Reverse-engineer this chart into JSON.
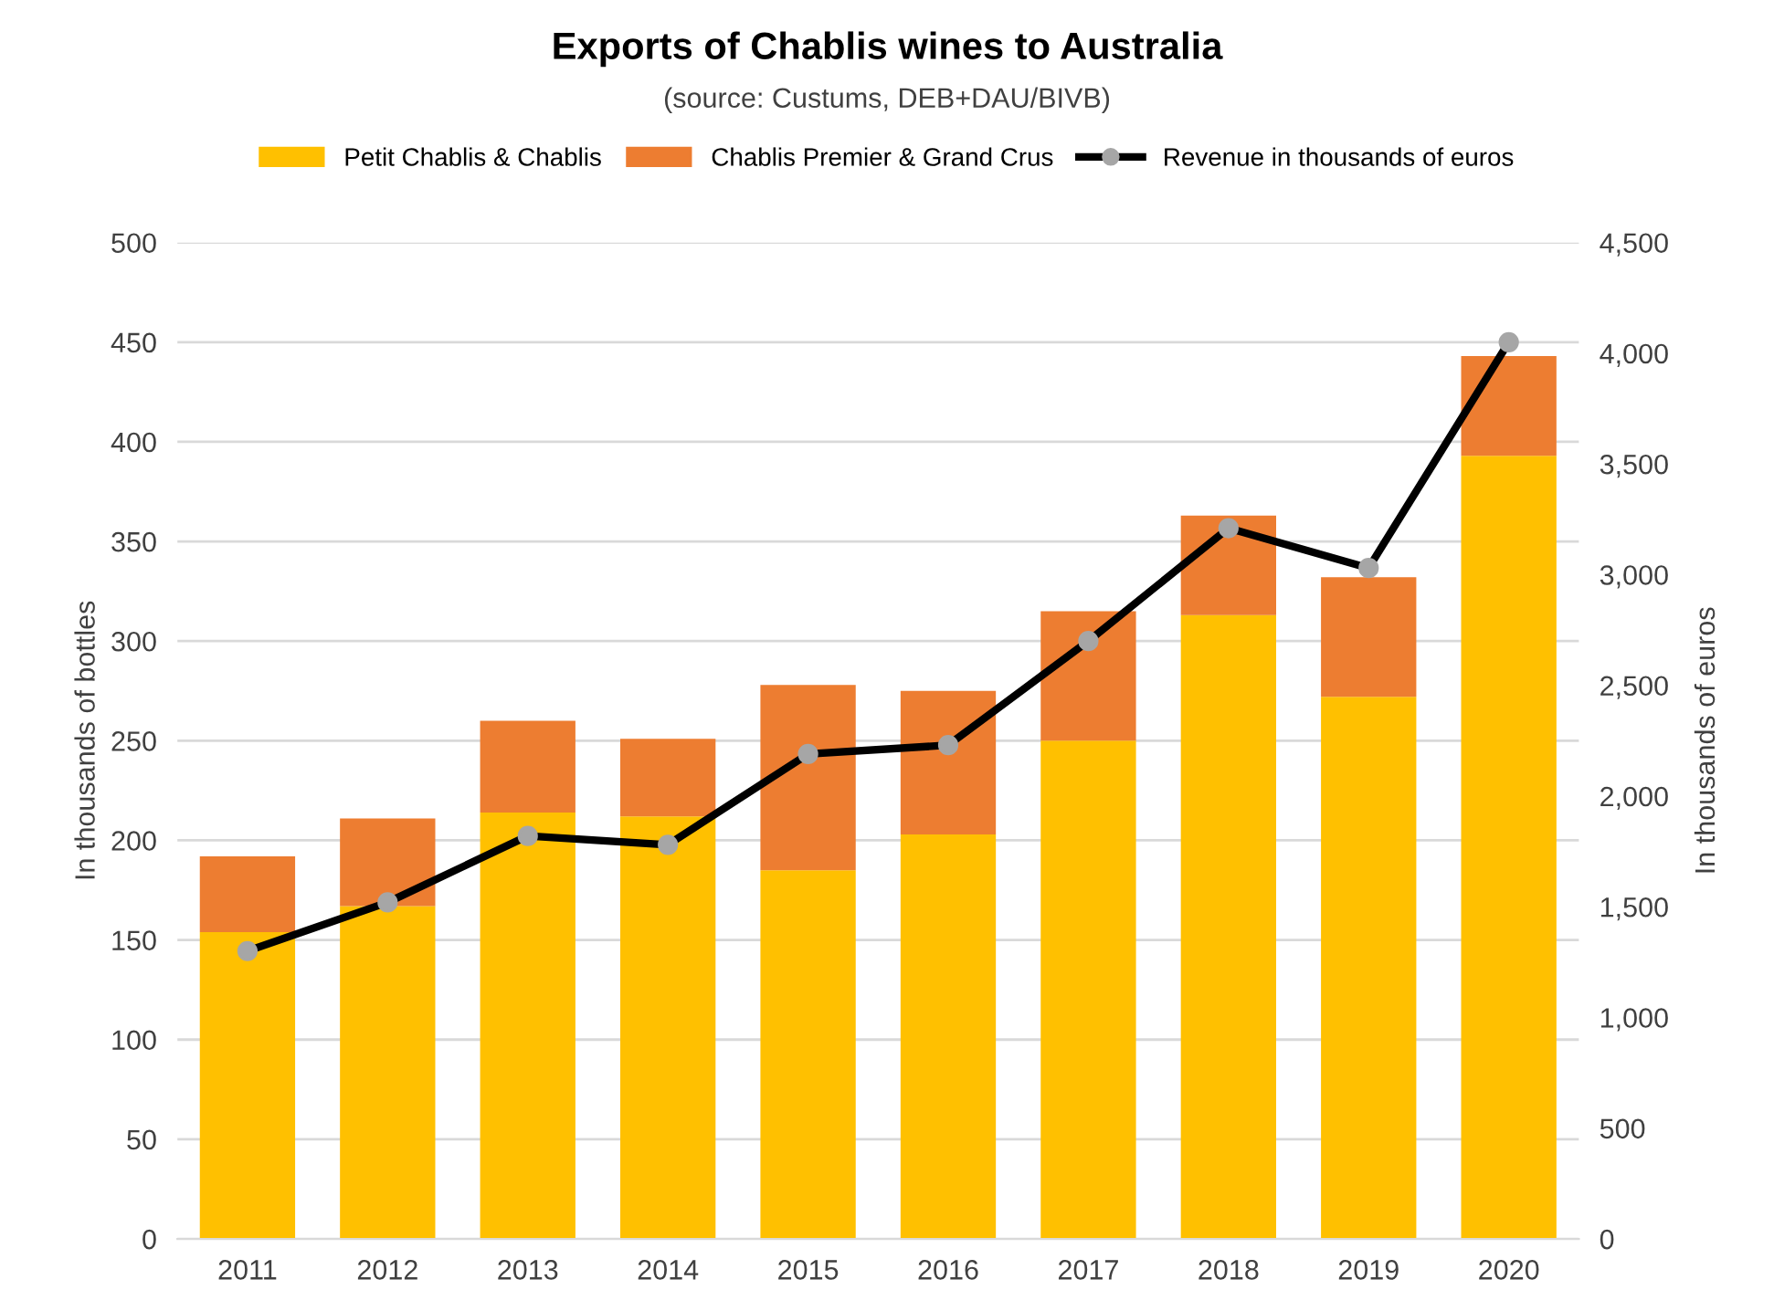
{
  "chart_data": {
    "type": "bar",
    "stacked": true,
    "title": "Exports of Chablis wines to Australia",
    "subtitle": "(source: Custums, DEB+DAU/BIVB)",
    "categories": [
      "2011",
      "2012",
      "2013",
      "2014",
      "2015",
      "2016",
      "2017",
      "2018",
      "2019",
      "2020"
    ],
    "series": [
      {
        "name": "Petit Chablis & Chablis",
        "color": "#ffc000",
        "values": [
          154,
          167,
          214,
          212,
          185,
          203,
          250,
          313,
          272,
          393
        ]
      },
      {
        "name": "Chablis Premier & Grand Crus",
        "color": "#ed7d31",
        "values": [
          38,
          44,
          46,
          39,
          93,
          72,
          65,
          50,
          60,
          50
        ]
      },
      {
        "name": "Revenue in thousands of euros",
        "type": "line",
        "axis": "y2",
        "color": "#000000",
        "marker": "circle",
        "values": [
          1300,
          1520,
          1820,
          1780,
          2190,
          2230,
          2700,
          3210,
          3030,
          4050
        ]
      }
    ],
    "ylabel": "In thousands of bottles",
    "y2label": "In thousands of euros",
    "ylim": [
      0,
      500
    ],
    "yticks": [
      0,
      50,
      100,
      150,
      200,
      250,
      300,
      350,
      400,
      450,
      500
    ],
    "y2lim": [
      0,
      4500
    ],
    "y2ticks": [
      0,
      500,
      {
        "value": 1000,
        "label": "1,000"
      },
      {
        "value": 1500,
        "label": "1,500"
      },
      {
        "value": 2000,
        "label": "2,000"
      },
      {
        "value": 2500,
        "label": "2,500"
      },
      {
        "value": 3000,
        "label": "3,000"
      },
      {
        "value": 3500,
        "label": "3,500"
      },
      {
        "value": 4000,
        "label": "4,000"
      },
      {
        "value": 4500,
        "label": "4,500"
      }
    ],
    "grid": "y",
    "legend": "top"
  }
}
